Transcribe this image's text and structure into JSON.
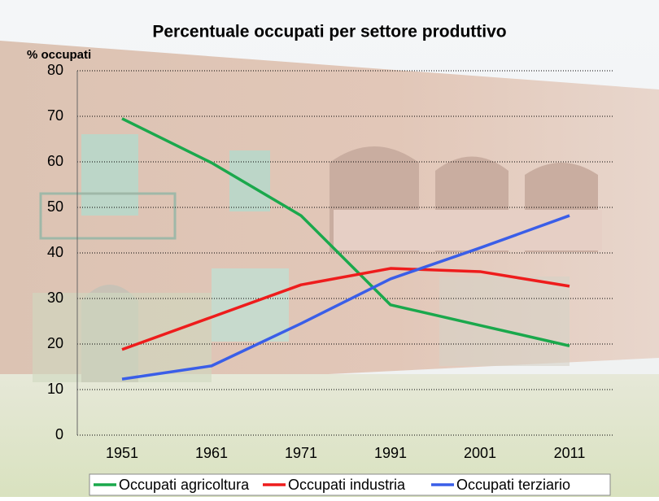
{
  "chart_data": {
    "type": "line",
    "title": "Percentuale occupati per settore produttivo",
    "y_label": "% occupati",
    "categories": [
      "1951",
      "1961",
      "1971",
      "1991",
      "2001",
      "2011"
    ],
    "series": [
      {
        "name": "Occupati agricoltura",
        "color": "#1aa84c",
        "values": [
          69.5,
          59.8,
          48.2,
          28.6,
          24.1,
          19.6
        ]
      },
      {
        "name": "Occupati industria",
        "color": "#ee1c1c",
        "values": [
          18.8,
          25.9,
          33.0,
          36.6,
          35.9,
          32.7
        ]
      },
      {
        "name": "Occupati terziario",
        "color": "#3a5ee8",
        "values": [
          12.3,
          15.2,
          24.5,
          34.3,
          41.1,
          48.2
        ]
      }
    ],
    "ylim": [
      0,
      80
    ],
    "yticks": [
      0,
      10,
      20,
      30,
      40,
      50,
      60,
      70,
      80
    ],
    "grid": true,
    "legend": "bottom"
  }
}
